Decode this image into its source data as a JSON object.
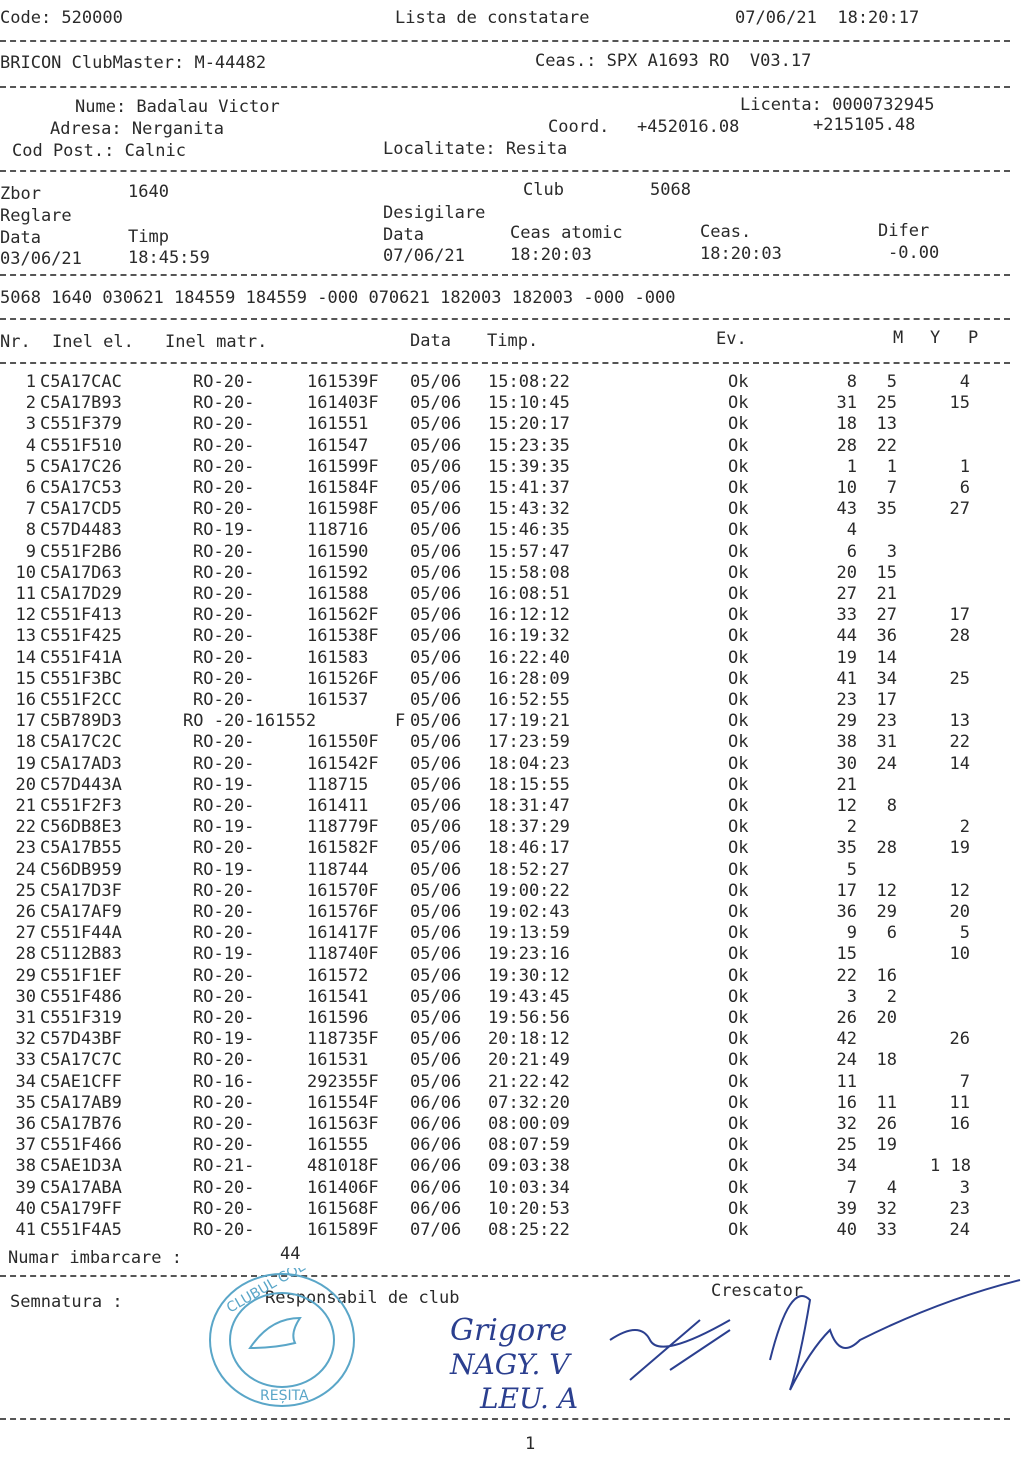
{
  "header": {
    "code": "Code: 520000",
    "title": "Lista de constatare",
    "datetime": "07/06/21  18:20:17",
    "club_master": "BRICON ClubMaster: M-44482",
    "clock": "Ceas.: SPX A1693 RO  V03.17"
  },
  "owner": {
    "name": "Nume: Badalau Victor",
    "address": "Adresa: Nerganita",
    "postcode": "Cod Post.: Calnic",
    "license": "Licenta: 0000732945",
    "coord_label": "Coord.",
    "coord_lat": "+452016.08",
    "coord_lon": "+215105.48",
    "locality": "Localitate: Resita"
  },
  "flight": {
    "zbor_label": "Zbor",
    "zbor": "1640",
    "club_label": "Club",
    "club": "5068",
    "reglare": "Reglare",
    "desigilare": "Desigilare",
    "data_label": "Data",
    "timp_label": "Timp",
    "data2_label": "Data",
    "ceas_atomic_label": "Ceas atomic",
    "ceas_label": "Ceas.",
    "difer_label": "Difer",
    "reg_date": "03/06/21",
    "reg_time": "18:45:59",
    "des_date": "07/06/21",
    "atomic": "18:20:03",
    "ceas": "18:20:03",
    "difer": "-0.00"
  },
  "code_line": "5068 1640 030621 184559 184559 -000 070621 182003 182003 -000 -000",
  "columns": {
    "nr": "Nr.",
    "inel_el": "Inel el.",
    "inel_matr": "Inel matr.",
    "data": "Data",
    "timp": "Timp.",
    "ev": "Ev.",
    "m": "M",
    "y": "Y",
    "p": "P"
  },
  "rows": [
    [
      "1",
      "C5A17CAC",
      "RO-20-",
      "161539F",
      "05/06",
      "15:08:22",
      "Ok",
      "8",
      "5",
      "4"
    ],
    [
      "2",
      "C5A17B93",
      "RO-20-",
      "161403F",
      "05/06",
      "15:10:45",
      "Ok",
      "31",
      "25",
      "15"
    ],
    [
      "3",
      "C551F379",
      "RO-20-",
      "161551",
      "05/06",
      "15:20:17",
      "Ok",
      "18",
      "13",
      ""
    ],
    [
      "4",
      "C551F510",
      "RO-20-",
      "161547",
      "05/06",
      "15:23:35",
      "Ok",
      "28",
      "22",
      ""
    ],
    [
      "5",
      "C5A17C26",
      "RO-20-",
      "161599F",
      "05/06",
      "15:39:35",
      "Ok",
      "1",
      "1",
      "1"
    ],
    [
      "6",
      "C5A17C53",
      "RO-20-",
      "161584F",
      "05/06",
      "15:41:37",
      "Ok",
      "10",
      "7",
      "6"
    ],
    [
      "7",
      "C5A17CD5",
      "RO-20-",
      "161598F",
      "05/06",
      "15:43:32",
      "Ok",
      "43",
      "35",
      "27"
    ],
    [
      "8",
      "C57D4483",
      "RO-19-",
      "118716",
      "05/06",
      "15:46:35",
      "Ok",
      "4",
      "",
      ""
    ],
    [
      "9",
      "C551F2B6",
      "RO-20-",
      "161590",
      "05/06",
      "15:57:47",
      "Ok",
      "6",
      "3",
      ""
    ],
    [
      "10",
      "C5A17D63",
      "RO-20-",
      "161592",
      "05/06",
      "15:58:08",
      "Ok",
      "20",
      "15",
      ""
    ],
    [
      "11",
      "C5A17D29",
      "RO-20-",
      "161588",
      "05/06",
      "16:08:51",
      "Ok",
      "27",
      "21",
      ""
    ],
    [
      "12",
      "C551F413",
      "RO-20-",
      "161562F",
      "05/06",
      "16:12:12",
      "Ok",
      "33",
      "27",
      "17"
    ],
    [
      "13",
      "C551F425",
      "RO-20-",
      "161538F",
      "05/06",
      "16:19:32",
      "Ok",
      "44",
      "36",
      "28"
    ],
    [
      "14",
      "C551F41A",
      "RO-20-",
      "161583",
      "05/06",
      "16:22:40",
      "Ok",
      "19",
      "14",
      ""
    ],
    [
      "15",
      "C551F3BC",
      "RO-20-",
      "161526F",
      "05/06",
      "16:28:09",
      "Ok",
      "41",
      "34",
      "25"
    ],
    [
      "16",
      "C551F2CC",
      "RO-20-",
      "161537",
      "05/06",
      "16:52:55",
      "Ok",
      "23",
      "17",
      ""
    ],
    [
      "17",
      "C5B789D3",
      "RO -20-161552",
      "F",
      "05/06",
      "17:19:21",
      "Ok",
      "29",
      "23",
      "13"
    ],
    [
      "18",
      "C5A17C2C",
      "RO-20-",
      "161550F",
      "05/06",
      "17:23:59",
      "Ok",
      "38",
      "31",
      "22"
    ],
    [
      "19",
      "C5A17AD3",
      "RO-20-",
      "161542F",
      "05/06",
      "18:04:23",
      "Ok",
      "30",
      "24",
      "14"
    ],
    [
      "20",
      "C57D443A",
      "RO-19-",
      "118715",
      "05/06",
      "18:15:55",
      "Ok",
      "21",
      "",
      ""
    ],
    [
      "21",
      "C551F2F3",
      "RO-20-",
      "161411",
      "05/06",
      "18:31:47",
      "Ok",
      "12",
      "8",
      ""
    ],
    [
      "22",
      "C56DB8E3",
      "RO-19-",
      "118779F",
      "05/06",
      "18:37:29",
      "Ok",
      "2",
      "",
      "2"
    ],
    [
      "23",
      "C5A17B55",
      "RO-20-",
      "161582F",
      "05/06",
      "18:46:17",
      "Ok",
      "35",
      "28",
      "19"
    ],
    [
      "24",
      "C56DB959",
      "RO-19-",
      "118744",
      "05/06",
      "18:52:27",
      "Ok",
      "5",
      "",
      ""
    ],
    [
      "25",
      "C5A17D3F",
      "RO-20-",
      "161570F",
      "05/06",
      "19:00:22",
      "Ok",
      "17",
      "12",
      "12"
    ],
    [
      "26",
      "C5A17AF9",
      "RO-20-",
      "161576F",
      "05/06",
      "19:02:43",
      "Ok",
      "36",
      "29",
      "20"
    ],
    [
      "27",
      "C551F44A",
      "RO-20-",
      "161417F",
      "05/06",
      "19:13:59",
      "Ok",
      "9",
      "6",
      "5"
    ],
    [
      "28",
      "C5112B83",
      "RO-19-",
      "118740F",
      "05/06",
      "19:23:16",
      "Ok",
      "15",
      "",
      "10"
    ],
    [
      "29",
      "C551F1EF",
      "RO-20-",
      "161572",
      "05/06",
      "19:30:12",
      "Ok",
      "22",
      "16",
      ""
    ],
    [
      "30",
      "C551F486",
      "RO-20-",
      "161541",
      "05/06",
      "19:43:45",
      "Ok",
      "3",
      "2",
      ""
    ],
    [
      "31",
      "C551F319",
      "RO-20-",
      "161596",
      "05/06",
      "19:56:56",
      "Ok",
      "26",
      "20",
      ""
    ],
    [
      "32",
      "C57D43BF",
      "RO-19-",
      "118735F",
      "05/06",
      "20:18:12",
      "Ok",
      "42",
      "",
      "26"
    ],
    [
      "33",
      "C5A17C7C",
      "RO-20-",
      "161531",
      "05/06",
      "20:21:49",
      "Ok",
      "24",
      "18",
      ""
    ],
    [
      "34",
      "C5AE1CFF",
      "RO-16-",
      "292355F",
      "05/06",
      "21:22:42",
      "Ok",
      "11",
      "",
      "7"
    ],
    [
      "35",
      "C5A17AB9",
      "RO-20-",
      "161554F",
      "06/06",
      "07:32:20",
      "Ok",
      "16",
      "11",
      "11"
    ],
    [
      "36",
      "C5A17B76",
      "RO-20-",
      "161563F",
      "06/06",
      "08:00:09",
      "Ok",
      "32",
      "26",
      "16"
    ],
    [
      "37",
      "C551F466",
      "RO-20-",
      "161555",
      "06/06",
      "08:07:59",
      "Ok",
      "25",
      "19",
      ""
    ],
    [
      "38",
      "C5AE1D3A",
      "RO-21-",
      "481018F",
      "06/06",
      "09:03:38",
      "Ok",
      "34",
      "",
      "1 18"
    ],
    [
      "39",
      "C5A17ABA",
      "RO-20-",
      "161406F",
      "06/06",
      "10:03:34",
      "Ok",
      "7",
      "4",
      "3"
    ],
    [
      "40",
      "C5A179FF",
      "RO-20-",
      "161568F",
      "06/06",
      "10:20:53",
      "Ok",
      "39",
      "32",
      "23"
    ],
    [
      "41",
      "C551F4A5",
      "RO-20-",
      "161589F",
      "07/06",
      "08:25:22",
      "Ok",
      "40",
      "33",
      "24"
    ]
  ],
  "footer": {
    "numar_label": "Numar imbarcare :",
    "numar": "44",
    "semnatura": "Semnatura :",
    "responsabil": "Responsabil de club",
    "crescator": "Crescator",
    "page": "1"
  },
  "stamp": {
    "text_top": "CLUBUL COLUMBOFIL",
    "text_bottom": "RESITA",
    "year": "1936",
    "color": "#5aa6c8"
  },
  "signatures": {
    "names": [
      "GRIGORE",
      "NAGY. V",
      "LEU. A"
    ],
    "ink_color": "#2b3f8f"
  }
}
